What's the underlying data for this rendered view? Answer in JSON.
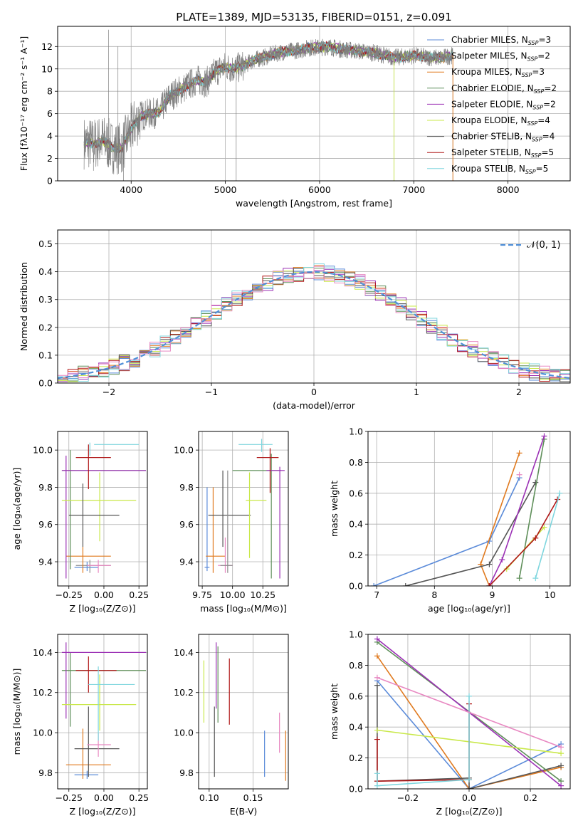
{
  "colors": {
    "grid": "#b0b0b0",
    "Chabrier MILES": "#5b8bd9",
    "Salpeter MILES": "#8c8c8c",
    "Kroupa MILES": "#e07a1f",
    "Chabrier ELODIE": "#5f8f5a",
    "Salpeter ELODIE": "#9b30b5",
    "Kroupa ELODIE": "#c9e84a",
    "Chabrier STELIB": "#555555",
    "Salpeter STELIB": "#b01818",
    "Kroupa STELIB": "#7fd6de",
    "pink": "#e889c2",
    "normal": "#4f8fd8",
    "data": "#808080"
  },
  "chart_data": [
    {
      "id": "spectrum",
      "type": "line",
      "title": "PLATE=1389, MJD=53135, FIBERID=0151, z=0.091",
      "xlabel": "wavelength [Angstrom, rest frame]",
      "ylabel": "Flux [fλ10⁻¹⁷ erg cm⁻² s⁻¹ A⁻¹]",
      "xlim": [
        3220,
        8660
      ],
      "ylim": [
        0,
        13.8
      ],
      "xticks": [
        4000,
        5000,
        6000,
        7000,
        8000
      ],
      "yticks": [
        0,
        2,
        4,
        6,
        8,
        10,
        12
      ],
      "legend": "top-right",
      "legend_labels": [
        "Chabrier MILES, N_SSP=3",
        "Salpeter MILES, N_SSP=2",
        "Kroupa MILES, N_SSP=3",
        "Chabrier ELODIE, N_SSP=2",
        "Salpeter ELODIE, N_SSP=2",
        "Kroupa ELODIE, N_SSP=4",
        "Chabrier STELIB, N_SSP=4",
        "Salpeter STELIB, N_SSP=5",
        "Kroupa STELIB, N_SSP=5"
      ],
      "continuum": [
        [
          3500,
          3.4
        ],
        [
          3600,
          3.3
        ],
        [
          3700,
          3.6
        ],
        [
          3800,
          3.0
        ],
        [
          3900,
          2.9
        ],
        [
          4000,
          4.6
        ],
        [
          4100,
          5.8
        ],
        [
          4200,
          6.0
        ],
        [
          4300,
          6.1
        ],
        [
          4400,
          7.5
        ],
        [
          4500,
          8.0
        ],
        [
          4600,
          8.5
        ],
        [
          4700,
          9.0
        ],
        [
          4800,
          8.8
        ],
        [
          4900,
          9.8
        ],
        [
          5000,
          10.2
        ],
        [
          5100,
          10.0
        ],
        [
          5200,
          10.3
        ],
        [
          5300,
          10.8
        ],
        [
          5400,
          11.0
        ],
        [
          5500,
          11.3
        ],
        [
          5600,
          11.5
        ],
        [
          5700,
          11.6
        ],
        [
          5800,
          11.7
        ],
        [
          5900,
          11.9
        ],
        [
          6000,
          11.9
        ],
        [
          6100,
          12.0
        ],
        [
          6200,
          11.8
        ],
        [
          6300,
          11.7
        ],
        [
          6400,
          11.6
        ],
        [
          6500,
          11.5
        ],
        [
          6600,
          11.4
        ],
        [
          6700,
          11.2
        ],
        [
          6800,
          11.0
        ],
        [
          6900,
          11.1
        ],
        [
          7000,
          11.2
        ],
        [
          7100,
          11.1
        ],
        [
          7200,
          11.0
        ],
        [
          7300,
          11.0
        ],
        [
          7400,
          11.2
        ]
      ],
      "data_range": [
        3500,
        7420
      ],
      "model_range": [
        3500,
        7420
      ]
    },
    {
      "id": "residuals",
      "type": "histogram",
      "xlabel": "(data-model)/error",
      "ylabel": "Normed distribution",
      "xlim": [
        -2.5,
        2.5
      ],
      "ylim": [
        0,
        0.55
      ],
      "xticks": [
        -2,
        -1,
        0,
        1,
        2
      ],
      "xticklabels": [
        "−2",
        "−1",
        "0",
        "1",
        "2"
      ],
      "yticks": [
        0,
        0.1,
        0.2,
        0.3,
        0.4,
        0.5
      ],
      "yticklabels": [
        "0.0",
        "0.1",
        "0.2",
        "0.3",
        "0.4",
        "0.5"
      ],
      "legend": "top-right",
      "legend_label": "𝒩(0, 1)",
      "bin_width": 0.1
    },
    {
      "id": "age_vs_Z",
      "type": "errorbar",
      "xlabel": "Z [log₁₀(Z/Z⊙)]",
      "ylabel": "age  [log₁₀(age/yr)]",
      "xlim": [
        -0.33,
        0.31
      ],
      "ylim": [
        9.27,
        10.1
      ],
      "xticks": [
        -0.25,
        0.0,
        0.25
      ],
      "xticklabels": [
        "−0.25",
        "0.00",
        "0.25"
      ],
      "yticks": [
        9.4,
        9.6,
        9.8,
        10.0
      ],
      "yticklabels": [
        "9.4",
        "9.6",
        "9.8",
        "10.0"
      ],
      "points": [
        {
          "series": "Chabrier MILES",
          "x": -0.12,
          "xlo": -0.21,
          "xhi": -0.04,
          "y": 9.37,
          "ylo": 9.35,
          "yhi": 9.4
        },
        {
          "series": "Salpeter MILES",
          "x": -0.1,
          "xlo": -0.2,
          "xhi": 0.05,
          "y": 9.38,
          "ylo": 9.34,
          "yhi": 9.41
        },
        {
          "series": "Kroupa MILES",
          "x": -0.15,
          "xlo": -0.27,
          "xhi": 0.05,
          "y": 9.43,
          "ylo": 9.34,
          "yhi": 9.48
        },
        {
          "series": "Chabrier ELODIE",
          "x": -0.24,
          "xlo": -0.3,
          "xhi": 0.3,
          "y": 9.89,
          "ylo": 9.36,
          "yhi": 10.0
        },
        {
          "series": "Salpeter ELODIE",
          "x": -0.27,
          "xlo": -0.3,
          "xhi": 0.3,
          "y": 9.89,
          "ylo": 9.31,
          "yhi": 9.97
        },
        {
          "series": "Kroupa ELODIE",
          "x": -0.03,
          "xlo": -0.3,
          "xhi": 0.23,
          "y": 9.73,
          "ylo": 9.51,
          "yhi": 9.88
        },
        {
          "series": "Chabrier STELIB",
          "x": -0.15,
          "xlo": -0.25,
          "xhi": 0.11,
          "y": 9.65,
          "ylo": 9.48,
          "yhi": 9.82
        },
        {
          "series": "Salpeter STELIB",
          "x": -0.11,
          "xlo": -0.2,
          "xhi": 0.05,
          "y": 9.96,
          "ylo": 9.79,
          "yhi": 10.03
        },
        {
          "series": "Kroupa STELIB",
          "x": -0.1,
          "xlo": -0.07,
          "xhi": 0.25,
          "y": 10.03,
          "ylo": 9.97,
          "yhi": 10.04
        },
        {
          "series": "pink",
          "x": -0.04,
          "xlo": -0.12,
          "xhi": 0.05,
          "y": 9.38,
          "ylo": 9.34,
          "yhi": 9.41
        }
      ]
    },
    {
      "id": "age_vs_mass",
      "type": "errorbar",
      "xlabel": "mass [log₁₀(M/M⊙)]",
      "xlim": [
        9.72,
        10.46
      ],
      "ylim": [
        9.27,
        10.1
      ],
      "xticks": [
        9.75,
        10.0,
        10.25
      ],
      "xticklabels": [
        "9.75",
        "10.00",
        "10.25"
      ],
      "yticks": [
        9.4,
        9.6,
        9.8,
        10.0
      ],
      "yticklabels": [
        "9.4",
        "9.6",
        "9.8",
        "10.0"
      ],
      "points": [
        {
          "series": "Chabrier MILES",
          "x": 9.79,
          "xlo": 9.77,
          "xhi": 9.81,
          "y": 9.37,
          "ylo": 9.35,
          "yhi": 9.8
        },
        {
          "series": "Kroupa MILES",
          "x": 9.84,
          "xlo": 9.78,
          "xhi": 9.94,
          "y": 9.43,
          "ylo": 9.34,
          "yhi": 9.8
        },
        {
          "series": "Chabrier STELIB",
          "x": 9.92,
          "xlo": 9.8,
          "xhi": 10.15,
          "y": 9.65,
          "ylo": 9.48,
          "yhi": 9.89
        },
        {
          "series": "Chabrier ELODIE",
          "x": 10.32,
          "xlo": 10.0,
          "xhi": 10.4,
          "y": 9.89,
          "ylo": 9.31,
          "yhi": 9.98
        },
        {
          "series": "Salpeter ELODIE",
          "x": 10.39,
          "xlo": 10.28,
          "xhi": 10.43,
          "y": 9.89,
          "ylo": 9.31,
          "yhi": 9.91
        },
        {
          "series": "Kroupa ELODIE",
          "x": 10.14,
          "xlo": 10.11,
          "xhi": 10.28,
          "y": 9.73,
          "ylo": 9.42,
          "yhi": 9.88
        },
        {
          "series": "Salpeter STELIB",
          "x": 10.31,
          "xlo": 10.2,
          "xhi": 10.38,
          "y": 9.96,
          "ylo": 9.77,
          "yhi": 10.01
        },
        {
          "series": "Kroupa STELIB",
          "x": 10.24,
          "xlo": 10.05,
          "xhi": 10.33,
          "y": 10.03,
          "ylo": 9.99,
          "yhi": 10.06
        },
        {
          "series": "pink",
          "x": 9.94,
          "xlo": 9.88,
          "xhi": 10.0,
          "y": 9.38,
          "ylo": 9.34,
          "yhi": 9.53
        },
        {
          "series": "Salpeter MILES",
          "x": 9.96,
          "xlo": 9.9,
          "xhi": 10.0,
          "y": 9.38,
          "ylo": 9.34,
          "yhi": 9.89
        }
      ]
    },
    {
      "id": "weight_vs_age",
      "type": "line",
      "xlabel": "age  [log₁₀(age/yr)]",
      "ylabel": "mass weight",
      "xlim": [
        6.85,
        10.35
      ],
      "ylim": [
        0,
        1
      ],
      "xticks": [
        7,
        8,
        9,
        10
      ],
      "xticklabels": [
        "7",
        "8",
        "9",
        "10"
      ],
      "yticks": [
        0,
        0.2,
        0.4,
        0.6,
        0.8,
        1.0
      ],
      "yticklabels": [
        "0.0",
        "0.2",
        "0.4",
        "0.6",
        "0.8",
        "1.0"
      ],
      "series": [
        {
          "name": "Chabrier MILES",
          "x": [
            6.95,
            8.95,
            9.47
          ],
          "y": [
            0.0,
            0.29,
            0.7
          ]
        },
        {
          "name": "Kroupa MILES",
          "x": [
            8.95,
            8.8,
            9.47
          ],
          "y": [
            0.0,
            0.14,
            0.86
          ]
        },
        {
          "name": "Chabrier STELIB",
          "x": [
            7.5,
            8.95,
            9.75
          ],
          "y": [
            0.0,
            0.14,
            0.67
          ]
        },
        {
          "name": "Chabrier ELODIE",
          "x": [
            9.47,
            9.9
          ],
          "y": [
            0.05,
            0.95
          ]
        },
        {
          "name": "Salpeter ELODIE",
          "x": [
            8.95,
            9.17,
            9.9
          ],
          "y": [
            0.0,
            0.17,
            0.97
          ]
        },
        {
          "name": "Kroupa ELODIE",
          "x": [
            9.25,
            9.9
          ],
          "y": [
            0.11,
            0.38
          ]
        },
        {
          "name": "Salpeter STELIB",
          "x": [
            8.95,
            9.75,
            10.13
          ],
          "y": [
            0.0,
            0.31,
            0.56
          ]
        },
        {
          "name": "Kroupa STELIB",
          "x": [
            9.75,
            10.17
          ],
          "y": [
            0.05,
            0.6
          ]
        },
        {
          "name": "pink",
          "x": [
            9.47
          ],
          "y": [
            0.72
          ]
        }
      ]
    },
    {
      "id": "mass_vs_Z",
      "type": "errorbar",
      "xlabel": "Z [log₁₀(Z/Z⊙)]",
      "ylabel": "mass [log₁₀(M/M⊙)]",
      "xlim": [
        -0.33,
        0.31
      ],
      "ylim": [
        9.72,
        10.49
      ],
      "xticks": [
        -0.25,
        0.0,
        0.25
      ],
      "xticklabels": [
        "−0.25",
        "0.00",
        "0.25"
      ],
      "yticks": [
        9.8,
        10.0,
        10.2,
        10.4
      ],
      "yticklabels": [
        "9.8",
        "10.0",
        "10.2",
        "10.4"
      ],
      "points": [
        {
          "series": "Chabrier MILES",
          "x": -0.12,
          "xlo": -0.21,
          "xhi": -0.04,
          "y": 9.79,
          "ylo": 9.77,
          "yhi": 9.81
        },
        {
          "series": "Kroupa MILES",
          "x": -0.15,
          "xlo": -0.27,
          "xhi": 0.05,
          "y": 9.84,
          "ylo": 9.77,
          "yhi": 10.02
        },
        {
          "series": "Chabrier STELIB",
          "x": -0.11,
          "xlo": -0.21,
          "xhi": 0.11,
          "y": 9.92,
          "ylo": 9.78,
          "yhi": 10.13
        },
        {
          "series": "pink",
          "x": -0.04,
          "xlo": -0.12,
          "xhi": 0.05,
          "y": 9.94,
          "ylo": 9.88,
          "yhi": 10.0
        },
        {
          "series": "Chabrier ELODIE",
          "x": -0.24,
          "xlo": -0.3,
          "xhi": 0.3,
          "y": 10.31,
          "ylo": 10.03,
          "yhi": 10.4
        },
        {
          "series": "Salpeter ELODIE",
          "x": -0.27,
          "xlo": -0.3,
          "xhi": 0.3,
          "y": 10.4,
          "ylo": 10.07,
          "yhi": 10.45
        },
        {
          "series": "Kroupa ELODIE",
          "x": -0.03,
          "xlo": -0.3,
          "xhi": 0.23,
          "y": 10.14,
          "ylo": 10.01,
          "yhi": 10.29
        },
        {
          "series": "Salpeter STELIB",
          "x": -0.11,
          "xlo": -0.2,
          "xhi": 0.09,
          "y": 10.31,
          "ylo": 10.2,
          "yhi": 10.38
        },
        {
          "series": "Kroupa STELIB",
          "x": -0.04,
          "xlo": -0.11,
          "xhi": 0.22,
          "y": 10.24,
          "ylo": 9.96,
          "yhi": 10.33
        }
      ]
    },
    {
      "id": "mass_vs_EBV",
      "type": "errorbar",
      "xlabel": "E(B-V)",
      "xlim": [
        0.088,
        0.19
      ],
      "ylim": [
        9.72,
        10.49
      ],
      "xticks": [
        0.1,
        0.15
      ],
      "xticklabels": [
        "0.10",
        "0.15"
      ],
      "yticks": [
        9.8,
        10.0,
        10.2,
        10.4
      ],
      "yticklabels": [
        "9.8",
        "10.0",
        "10.2",
        "10.4"
      ],
      "points": [
        {
          "series": "Kroupa ELODIE",
          "x": 0.094,
          "y": 10.2,
          "ylo": 10.05,
          "yhi": 10.36
        },
        {
          "series": "Chabrier STELIB",
          "x": 0.106,
          "y": 9.95,
          "ylo": 9.78,
          "yhi": 10.13
        },
        {
          "series": "Salpeter ELODIE",
          "x": 0.108,
          "y": 10.3,
          "ylo": 10.12,
          "yhi": 10.45
        },
        {
          "series": "Chabrier ELODIE",
          "x": 0.11,
          "y": 10.25,
          "ylo": 10.05,
          "yhi": 10.43
        },
        {
          "series": "Salpeter STELIB",
          "x": 0.123,
          "y": 10.2,
          "ylo": 10.04,
          "yhi": 10.37
        },
        {
          "series": "Chabrier MILES",
          "x": 0.163,
          "y": 9.9,
          "ylo": 9.78,
          "yhi": 10.01
        },
        {
          "series": "pink",
          "x": 0.18,
          "y": 10.0,
          "ylo": 9.9,
          "yhi": 10.1
        },
        {
          "series": "Kroupa MILES",
          "x": 0.187,
          "y": 9.89,
          "ylo": 9.76,
          "yhi": 10.01
        }
      ]
    },
    {
      "id": "weight_vs_Z",
      "type": "line",
      "xlabel": "Z [log₁₀(Z/Z⊙)]",
      "ylabel": "mass weight",
      "xlim": [
        -0.33,
        0.33
      ],
      "ylim": [
        0,
        1
      ],
      "xticks": [
        -0.2,
        0.0,
        0.2
      ],
      "xticklabels": [
        "−0.2",
        "0.0",
        "0.2"
      ],
      "yticks": [
        0,
        0.2,
        0.4,
        0.6,
        0.8,
        1.0
      ],
      "yticklabels": [
        "0.0",
        "0.2",
        "0.4",
        "0.6",
        "0.8",
        "1.0"
      ],
      "series": [
        {
          "name": "Chabrier MILES",
          "x": [
            -0.3,
            0.0,
            0.3
          ],
          "y": [
            0.7,
            0.0,
            0.29
          ]
        },
        {
          "name": "Kroupa MILES",
          "x": [
            -0.3,
            0.0,
            0.3
          ],
          "y": [
            0.86,
            0.0,
            0.14
          ]
        },
        {
          "name": "Chabrier STELIB",
          "x": [
            -0.3,
            -0.3,
            0.0,
            0.0,
            0.3
          ],
          "y": [
            0.67,
            0.05,
            0.07,
            0.0,
            0.15
          ]
        },
        {
          "name": "Chabrier ELODIE",
          "x": [
            -0.3,
            0.3
          ],
          "y": [
            0.95,
            0.05
          ]
        },
        {
          "name": "Salpeter ELODIE",
          "x": [
            -0.3,
            0.3
          ],
          "y": [
            0.97,
            0.02
          ]
        },
        {
          "name": "Kroupa ELODIE",
          "x": [
            -0.3,
            0.3
          ],
          "y": [
            0.38,
            0.23
          ]
        },
        {
          "name": "Salpeter STELIB",
          "x": [
            -0.3,
            -0.3,
            0.0,
            0.0
          ],
          "y": [
            0.32,
            0.05,
            0.06,
            0.55
          ]
        },
        {
          "name": "Kroupa STELIB",
          "x": [
            -0.3,
            -0.3,
            0.0,
            0.0
          ],
          "y": [
            0.1,
            0.02,
            0.06,
            0.6
          ]
        },
        {
          "name": "pink",
          "x": [
            -0.3,
            0.3
          ],
          "y": [
            0.72,
            0.27
          ]
        }
      ]
    }
  ]
}
